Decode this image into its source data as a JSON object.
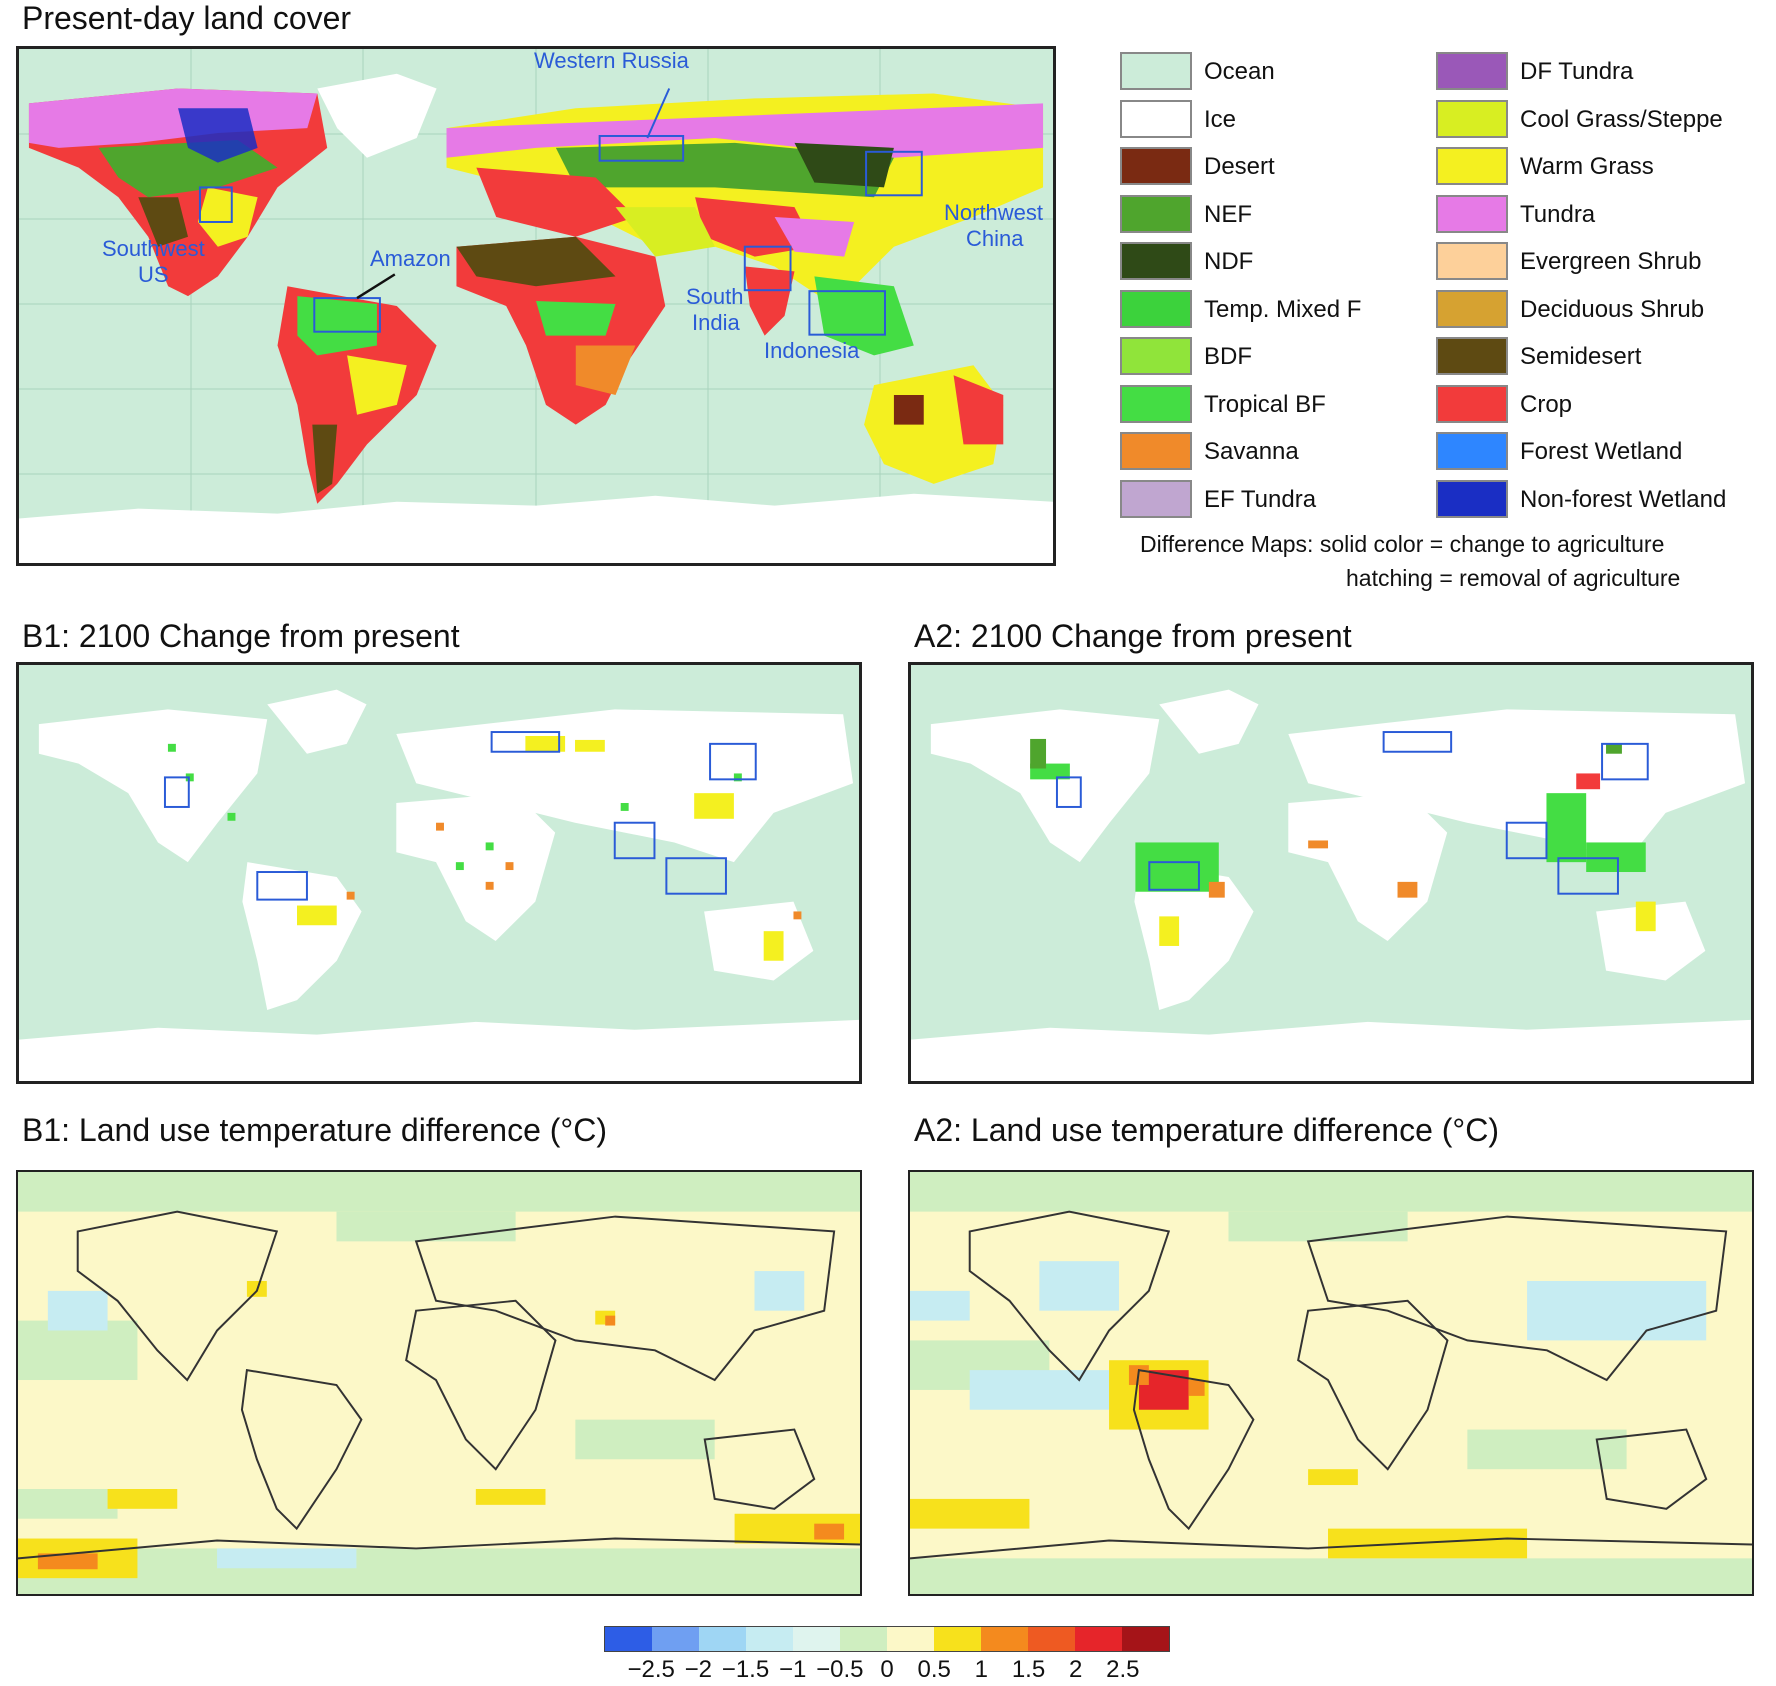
{
  "panels": {
    "present_title": "Present-day land cover",
    "b1_change_title": "B1: 2100 Change from present",
    "a2_change_title": "A2: 2100 Change from present",
    "b1_temp_title": "B1: Land use temperature difference (°C)",
    "a2_temp_title": "A2: Land use temperature difference (°C)"
  },
  "regions": {
    "western_russia": "Western Russia",
    "southwest_us_1": "Southwest",
    "southwest_us_2": "US",
    "amazon": "Amazon",
    "northwest_china_1": "Northwest",
    "northwest_china_2": "China",
    "south_india_1": "South",
    "south_india_2": "India",
    "indonesia": "Indonesia"
  },
  "legend": {
    "left": [
      {
        "label": "Ocean",
        "color": "#ccecd9"
      },
      {
        "label": "Ice",
        "color": "#ffffff"
      },
      {
        "label": "Desert",
        "color": "#7a2a12"
      },
      {
        "label": "NEF",
        "color": "#4fa52d"
      },
      {
        "label": "NDF",
        "color": "#2f4a17"
      },
      {
        "label": "Temp. Mixed F",
        "color": "#3cd23c"
      },
      {
        "label": "BDF",
        "color": "#90e43a"
      },
      {
        "label": "Tropical BF",
        "color": "#44dd44"
      },
      {
        "label": "Savanna",
        "color": "#f08a2a"
      },
      {
        "label": "EF Tundra",
        "color": "#c0a6d0"
      }
    ],
    "right": [
      {
        "label": "DF Tundra",
        "color": "#9a58b8"
      },
      {
        "label": "Cool Grass/Steppe",
        "color": "#d8ee22"
      },
      {
        "label": "Warm Grass",
        "color": "#f4f020"
      },
      {
        "label": "Tundra",
        "color": "#e67ae6"
      },
      {
        "label": "Evergreen Shrub",
        "color": "#fdd09a"
      },
      {
        "label": "Deciduous Shrub",
        "color": "#d6a231"
      },
      {
        "label": "Semidesert",
        "color": "#5e4a12"
      },
      {
        "label": "Crop",
        "color": "#f23b3b"
      },
      {
        "label": "Forest Wetland",
        "color": "#2e86ff"
      },
      {
        "label": "Non-forest Wetland",
        "color": "#1a2ec4"
      }
    ],
    "note_1": "Difference Maps: solid color = change to agriculture",
    "note_2": "hatching = removal of agriculture"
  },
  "colorbar": {
    "colors": [
      "#2d5de6",
      "#6f9ff2",
      "#9fd6f4",
      "#c6ecf2",
      "#dff4ee",
      "#cfeec0",
      "#fcf8c8",
      "#f7e11c",
      "#f48a1e",
      "#ee5a22",
      "#e6252a",
      "#a51418"
    ],
    "ticks": [
      "−2.5",
      "−2",
      "−1.5",
      "−1",
      "−0.5",
      "0",
      "0.5",
      "1",
      "1.5",
      "2",
      "2.5"
    ]
  }
}
